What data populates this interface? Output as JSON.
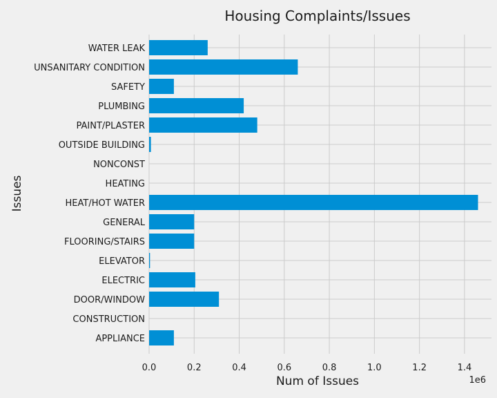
{
  "chart_data": {
    "type": "bar",
    "orientation": "horizontal",
    "title": "Housing Complaints/Issues",
    "xlabel": "Num of Issues",
    "ylabel": "Issues",
    "x_scale_label": "1e6",
    "xlim": [
      0,
      1.5
    ],
    "x_ticks": [
      "0.0",
      "0.2",
      "0.4",
      "0.6",
      "0.8",
      "1.0",
      "1.2",
      "1.4"
    ],
    "grid": true,
    "bar_color": "#008fd5",
    "background_color": "#f0f0f0",
    "grid_color": "#cbcbcb",
    "categories": [
      "APPLIANCE",
      "CONSTRUCTION",
      "DOOR/WINDOW",
      "ELECTRIC",
      "ELEVATOR",
      "FLOORING/STAIRS",
      "GENERAL",
      "HEAT/HOT WATER",
      "HEATING",
      "NONCONST",
      "OUTSIDE BUILDING",
      "PAINT/PLASTER",
      "PLUMBING",
      "SAFETY",
      "UNSANITARY CONDITION",
      "WATER LEAK"
    ],
    "values": [
      0.11,
      0.0,
      0.31,
      0.205,
      0.004,
      0.2,
      0.2,
      1.46,
      0.0,
      0.0,
      0.008,
      0.48,
      0.42,
      0.11,
      0.66,
      0.26
    ]
  }
}
